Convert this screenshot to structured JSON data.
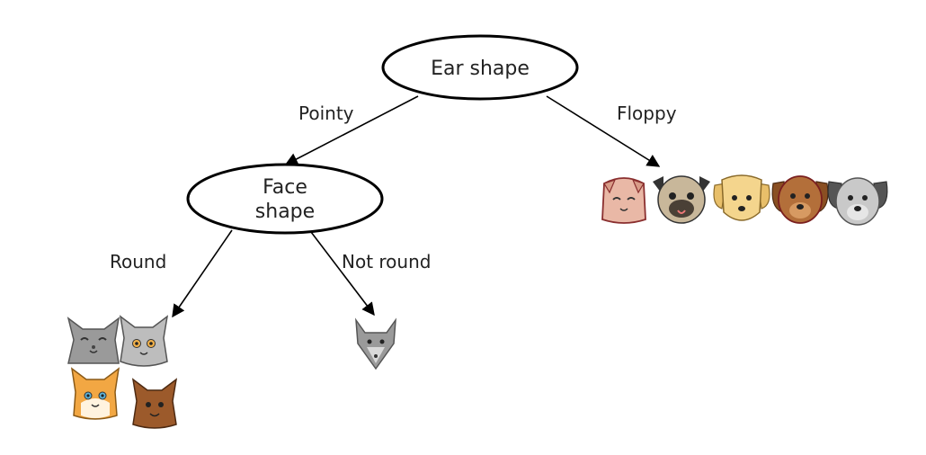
{
  "nodes": {
    "root": {
      "label": "Ear shape"
    },
    "face": {
      "label_line1": "Face",
      "label_line2": "shape"
    }
  },
  "edges": {
    "pointy": "Pointy",
    "floppy": "Floppy",
    "round": "Round",
    "not_round": "Not round"
  },
  "leaves": {
    "round": [
      "grey-cat-icon",
      "grey-cat-icon",
      "orange-cat-icon",
      "brown-cat-icon"
    ],
    "not_round": [
      "grey-wolf-cat-icon"
    ],
    "floppy": [
      "pink-cat-icon",
      "pug-dog-icon",
      "yellow-dog-icon",
      "brown-dog-icon",
      "grey-dog-icon"
    ]
  },
  "colors": {
    "stroke": "#000000",
    "grey_cat": "#9a9a9a",
    "orange_cat": "#f2a743",
    "brown_cat": "#9c5a2b",
    "pink_cat": "#e9b8a6",
    "pug": "#c8b79a",
    "yellow_dog": "#f4d58d",
    "brown_dog": "#b36f3a",
    "grey_dog": "#c9c9c9"
  }
}
